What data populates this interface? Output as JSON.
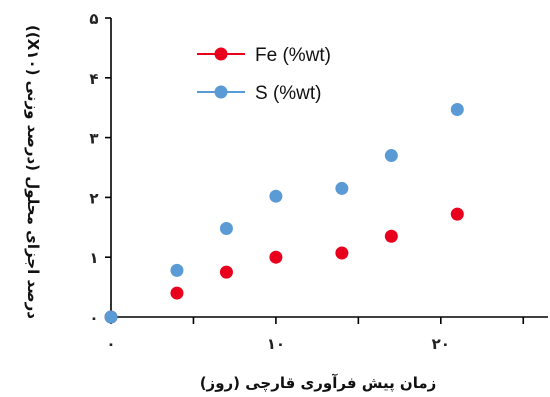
{
  "chart_data": {
    "type": "scatter",
    "xlabel": "زمان پیش فرآوری قارچی (روز)",
    "ylabel": "درصد اجزای محلول (درصد وزنی (X۱۰))",
    "xlim": [
      0,
      26.5
    ],
    "ylim": [
      0,
      5
    ],
    "x_ticks": [
      0,
      10,
      20
    ],
    "x_tick_labels": [
      "۰",
      "۱۰",
      "۲۰"
    ],
    "y_ticks": [
      0,
      1,
      2,
      3,
      4,
      5
    ],
    "y_tick_labels": [
      "۰",
      "۱",
      "۲",
      "۳",
      "۴",
      "۵"
    ],
    "legend_position": "top-center",
    "series": [
      {
        "name": "Fe (%wt)",
        "color": "#e8001c",
        "x": [
          0,
          4,
          7,
          10,
          14,
          17,
          21
        ],
        "y": [
          0.0,
          0.4,
          0.75,
          1.0,
          1.07,
          1.35,
          1.72
        ]
      },
      {
        "name": "S (%wt)",
        "color": "#5b9bd5",
        "x": [
          0,
          4,
          7,
          10,
          14,
          17,
          21
        ],
        "y": [
          0.0,
          0.78,
          1.48,
          2.02,
          2.15,
          2.7,
          3.47
        ]
      }
    ]
  }
}
